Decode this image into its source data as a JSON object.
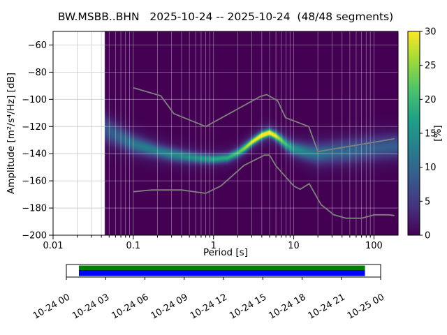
{
  "title": "BW.MSBB..BHN   2025-10-24 -- 2025-10-24  (48/48 segments)",
  "chart_data": {
    "type": "heatmap",
    "title": "BW.MSBB..BHN   2025-10-24 -- 2025-10-24  (48/48 segments)",
    "xlabel": "Period [s]",
    "ylabel": "Amplitude [m²/s⁴/Hz] [dB]",
    "xscale": "log",
    "xlim": [
      0.01,
      200
    ],
    "ylim": [
      -200,
      -50
    ],
    "xticks": [
      0.01,
      0.1,
      1,
      10,
      100
    ],
    "xtick_labels": [
      "0.01",
      "0.1",
      "1",
      "10",
      "100"
    ],
    "yticks": [
      -60,
      -80,
      -100,
      -120,
      -140,
      -160,
      -180,
      -200
    ],
    "grid": true,
    "background_color": "#440154",
    "data_period_range": [
      0.044,
      200
    ],
    "colorbar": {
      "label": "[%]",
      "colormap": "viridis",
      "min": 0,
      "max": 30,
      "ticks": [
        0,
        5,
        10,
        15,
        20,
        25,
        30
      ]
    },
    "psd_distribution": {
      "description": "Estimated probability distribution of PSD values: per period bin the mode amplitude (dB), core spread (dB), peak probability (%), plus a broad low-probability halo.",
      "bins": [
        {
          "period": 0.044,
          "mode_db": -122.0,
          "spread_db": 6.0,
          "peak_pct": 6,
          "halo_spread_db": 10.0,
          "halo_pct": 2.0
        },
        {
          "period": 0.06,
          "mode_db": -126.0,
          "spread_db": 5.0,
          "peak_pct": 7,
          "halo_spread_db": 9.0,
          "halo_pct": 2.5
        },
        {
          "period": 0.08,
          "mode_db": -130.0,
          "spread_db": 4.5,
          "peak_pct": 8,
          "halo_spread_db": 8.0,
          "halo_pct": 2.5
        },
        {
          "period": 0.1,
          "mode_db": -133.0,
          "spread_db": 4.0,
          "peak_pct": 9,
          "halo_spread_db": 8.0,
          "halo_pct": 3.0
        },
        {
          "period": 0.15,
          "mode_db": -136.0,
          "spread_db": 3.5,
          "peak_pct": 10,
          "halo_spread_db": 7.0,
          "halo_pct": 3.0
        },
        {
          "period": 0.2,
          "mode_db": -138.0,
          "spread_db": 3.0,
          "peak_pct": 10,
          "halo_spread_db": 7.0,
          "halo_pct": 3.0
        },
        {
          "period": 0.3,
          "mode_db": -140.5,
          "spread_db": 3.0,
          "peak_pct": 11,
          "halo_spread_db": 6.0,
          "halo_pct": 3.0
        },
        {
          "period": 0.5,
          "mode_db": -142.5,
          "spread_db": 2.5,
          "peak_pct": 12,
          "halo_spread_db": 6.0,
          "halo_pct": 3.0
        },
        {
          "period": 0.7,
          "mode_db": -143.5,
          "spread_db": 2.2,
          "peak_pct": 13,
          "halo_spread_db": 5.0,
          "halo_pct": 3.0
        },
        {
          "period": 1.0,
          "mode_db": -144.0,
          "spread_db": 2.0,
          "peak_pct": 15,
          "halo_spread_db": 5.0,
          "halo_pct": 3.0
        },
        {
          "period": 1.5,
          "mode_db": -143.0,
          "spread_db": 2.0,
          "peak_pct": 16,
          "halo_spread_db": 5.0,
          "halo_pct": 3.0
        },
        {
          "period": 2.0,
          "mode_db": -139.5,
          "spread_db": 2.0,
          "peak_pct": 18,
          "halo_spread_db": 5.0,
          "halo_pct": 3.5
        },
        {
          "period": 2.5,
          "mode_db": -135.5,
          "spread_db": 2.0,
          "peak_pct": 22,
          "halo_spread_db": 5.0,
          "halo_pct": 4.0
        },
        {
          "period": 3.0,
          "mode_db": -131.5,
          "spread_db": 1.8,
          "peak_pct": 26,
          "halo_spread_db": 5.0,
          "halo_pct": 4.0
        },
        {
          "period": 4.0,
          "mode_db": -126.5,
          "spread_db": 1.8,
          "peak_pct": 30,
          "halo_spread_db": 5.0,
          "halo_pct": 4.5
        },
        {
          "period": 5.0,
          "mode_db": -124.5,
          "spread_db": 1.8,
          "peak_pct": 30,
          "halo_spread_db": 5.0,
          "halo_pct": 4.5
        },
        {
          "period": 6.0,
          "mode_db": -127.0,
          "spread_db": 2.0,
          "peak_pct": 26,
          "halo_spread_db": 5.0,
          "halo_pct": 4.0
        },
        {
          "period": 7.0,
          "mode_db": -130.0,
          "spread_db": 2.2,
          "peak_pct": 20,
          "halo_spread_db": 5.5,
          "halo_pct": 4.0
        },
        {
          "period": 8.0,
          "mode_db": -133.0,
          "spread_db": 2.5,
          "peak_pct": 16,
          "halo_spread_db": 6.0,
          "halo_pct": 4.0
        },
        {
          "period": 10.0,
          "mode_db": -136.5,
          "spread_db": 3.0,
          "peak_pct": 12,
          "halo_spread_db": 6.0,
          "halo_pct": 4.0
        },
        {
          "period": 15.0,
          "mode_db": -139.0,
          "spread_db": 3.5,
          "peak_pct": 9,
          "halo_spread_db": 7.0,
          "halo_pct": 4.0
        },
        {
          "period": 20.0,
          "mode_db": -140.0,
          "spread_db": 4.0,
          "peak_pct": 8,
          "halo_spread_db": 8.0,
          "halo_pct": 4.0
        },
        {
          "period": 30.0,
          "mode_db": -139.0,
          "spread_db": 4.5,
          "peak_pct": 7,
          "halo_spread_db": 8.0,
          "halo_pct": 3.5
        },
        {
          "period": 50.0,
          "mode_db": -138.0,
          "spread_db": 5.0,
          "peak_pct": 7,
          "halo_spread_db": 9.0,
          "halo_pct": 3.0
        },
        {
          "period": 80.0,
          "mode_db": -136.5,
          "spread_db": 5.0,
          "peak_pct": 6,
          "halo_spread_db": 9.0,
          "halo_pct": 3.0
        },
        {
          "period": 120.0,
          "mode_db": -135.5,
          "spread_db": 5.0,
          "peak_pct": 6,
          "halo_spread_db": 9.0,
          "halo_pct": 3.0
        },
        {
          "period": 180.0,
          "mode_db": -134.5,
          "spread_db": 5.0,
          "peak_pct": 6,
          "halo_spread_db": 9.0,
          "halo_pct": 3.0
        }
      ]
    },
    "noise_models": {
      "color": "#808080",
      "nhnm": [
        [
          0.1,
          -91.5
        ],
        [
          0.22,
          -97.4
        ],
        [
          0.32,
          -110.5
        ],
        [
          0.8,
          -120.0
        ],
        [
          3.8,
          -98.0
        ],
        [
          4.6,
          -96.5
        ],
        [
          6.3,
          -101.0
        ],
        [
          7.9,
          -113.5
        ],
        [
          15.4,
          -120.0
        ],
        [
          20.0,
          -138.5
        ],
        [
          180.0,
          -129.0
        ]
      ],
      "nlnm": [
        [
          0.1,
          -168.0
        ],
        [
          0.17,
          -166.7
        ],
        [
          0.4,
          -166.7
        ],
        [
          0.8,
          -169.2
        ],
        [
          1.24,
          -163.7
        ],
        [
          2.4,
          -148.6
        ],
        [
          4.3,
          -141.1
        ],
        [
          5.0,
          -141.1
        ],
        [
          6.0,
          -149.0
        ],
        [
          10.0,
          -163.8
        ],
        [
          12.0,
          -166.2
        ],
        [
          15.6,
          -162.1
        ],
        [
          21.9,
          -177.5
        ],
        [
          31.6,
          -185.0
        ],
        [
          45.0,
          -187.5
        ],
        [
          70.0,
          -187.5
        ],
        [
          101.0,
          -185.0
        ],
        [
          154.0,
          -185.0
        ],
        [
          180.0,
          -185.5
        ]
      ]
    }
  },
  "timeline": {
    "tick_labels": [
      "10-24 00",
      "10-24 03",
      "10-24 06",
      "10-24 09",
      "10-24 12",
      "10-24 15",
      "10-24 18",
      "10-24 21",
      "10-25 00"
    ],
    "coverage": {
      "start_frac": 0.04,
      "end_frac": 0.95,
      "top_color": "#008000",
      "bottom_color": "#0000ff"
    }
  }
}
